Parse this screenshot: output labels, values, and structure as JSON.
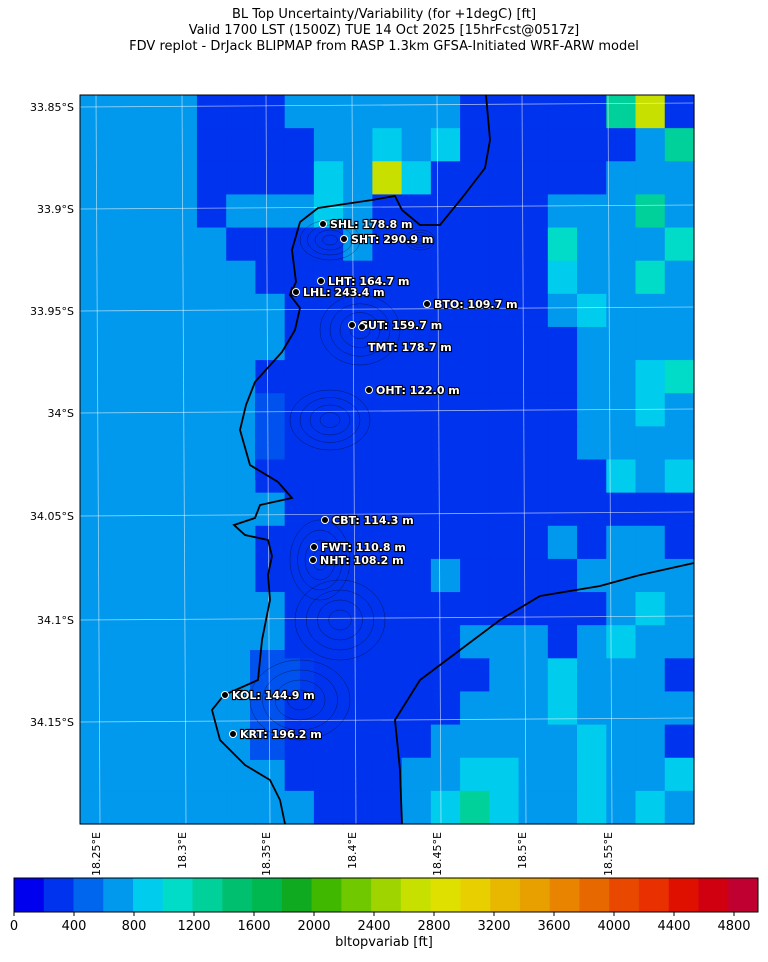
{
  "title": {
    "lines": [
      "BL Top Uncertainty/Variability (for +1degC) [ft]",
      "Valid 1700 LST (1500Z) TUE 14 Oct 2025 [15hrFcst@0517z]",
      "FDV replot - DrJack BLIPMAP from RASP 1.3km GFSA-Initiated WRF-ARW model"
    ]
  },
  "axes": {
    "lat_ticks": [
      "33.85°S",
      "33.9°S",
      "33.95°S",
      "34°S",
      "34.05°S",
      "34.1°S",
      "34.15°S"
    ],
    "lon_ticks": [
      "18.25°E",
      "18.3°E",
      "18.35°E",
      "18.4°E",
      "18.45°E",
      "18.5°E",
      "18.55°E"
    ]
  },
  "stations": [
    {
      "code": "SHL",
      "label": "SHL: 178.8 m"
    },
    {
      "code": "SHT",
      "label": "SHT: 290.9 m"
    },
    {
      "code": "LHT",
      "label": "LHT: 164.7 m"
    },
    {
      "code": "LHL",
      "label": "LHL: 243.4 m"
    },
    {
      "code": "BTO",
      "label": "BTO: 109.7 m"
    },
    {
      "code": "GUT",
      "label": "GUT: 159.7 m"
    },
    {
      "code": "TMT",
      "label": "TMT: 178.7 m"
    },
    {
      "code": "OHT",
      "label": "OHT: 122.0 m"
    },
    {
      "code": "CBT",
      "label": "CBT: 114.3 m"
    },
    {
      "code": "FWT",
      "label": "FWT: 110.8 m"
    },
    {
      "code": "NHT",
      "label": "NHT: 108.2 m"
    },
    {
      "code": "KOL",
      "label": "KOL: 144.9 m"
    },
    {
      "code": "KRT",
      "label": "KRT: 196.2 m"
    }
  ],
  "colorbar": {
    "label": "bltopvariab [ft]",
    "ticks": [
      "0",
      "400",
      "800",
      "1200",
      "1600",
      "2000",
      "2400",
      "2800",
      "3200",
      "3600",
      "4000",
      "4400",
      "4800"
    ],
    "colors": [
      "#0000ee",
      "#0033ee",
      "#0066ee",
      "#0099ee",
      "#00ccee",
      "#00dcc8",
      "#00d09a",
      "#00c070",
      "#00b850",
      "#10aa20",
      "#40b800",
      "#70c800",
      "#a0d400",
      "#c8e000",
      "#e0e000",
      "#e8d000",
      "#e8b800",
      "#e8a000",
      "#e88400",
      "#e86800",
      "#e84800",
      "#e83000",
      "#e01000",
      "#d00010",
      "#bf0030"
    ],
    "note_colors": {
      "land_dominant": "#0099ee",
      "mountain": "#0033ee"
    }
  },
  "map": {
    "row_colors": [
      "ccccbbbccccccbbbbbfgb",
      "ccccbbbbccdcdbbbbbbcf",
      "ccccbbbbdcgdbbbbbbccc",
      "ccccbcccdcbbbbbbcccfc",
      "cccccbbbbcbbbbbbeccce",
      "ccccccbbbbbbbbbbdccec",
      "cccccccbbbbbbbbbcdccc",
      "cccccccbbbbbbbbbbcccc",
      "ccccccbbbbbbbbbbbccde",
      "cccccccbbbbbbbbbbccdc",
      "cccccccbbbbbbbbbbcccc",
      "ccccccbbbbbbbbbbbbdcd",
      "cccccccbbbbbbbbbbbbbb",
      "ccccccbbbbbbbbbbcbccb",
      "ccccccbbbbbbcbbbbcccc",
      "cccccccbbbbbbbbbbbcdc",
      "cccccccbbbbbbcccbcdcc",
      "ccccccccbbbbbbccdcccb",
      "cccccccbbbbbbcccdcccc",
      "cccccccbbbbbcccccdccb",
      "cccccccbbbbccddccdccd",
      "ccccccccbbbcdfdccdcdc"
    ]
  }
}
